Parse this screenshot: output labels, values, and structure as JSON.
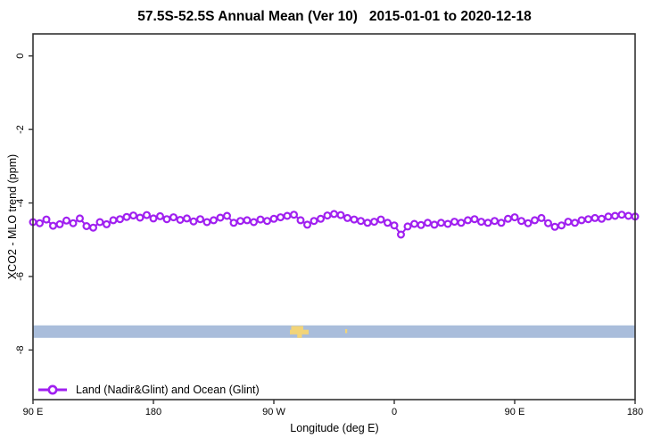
{
  "title": "57.5S-52.5S Annual Mean (Ver 10)   2015-01-01 to 2020-12-18",
  "legend": {
    "label": "Land (Nadir&Glint) and Ocean (Glint)"
  },
  "colors": {
    "series": "#A020F0",
    "marker_fill": "#ffffff",
    "ocean_band": "#A9BDDB",
    "land": "#F2D478",
    "axis": "#333333",
    "text": "#000000"
  },
  "chart_data": {
    "type": "line",
    "title": "57.5S-52.5S Annual Mean (Ver 10)   2015-01-01 to 2020-12-18",
    "xlabel": "Longitude (deg E)",
    "ylabel": "XCO2 - MLO trend (ppm)",
    "xlim": [
      90,
      540
    ],
    "ylim": [
      -9.35,
      0.6
    ],
    "grid": false,
    "legend_position": "bottom-left-inside",
    "x_ticks": [
      {
        "value": 90,
        "label": "90 E"
      },
      {
        "value": 180,
        "label": "180"
      },
      {
        "value": 270,
        "label": "90 W"
      },
      {
        "value": 360,
        "label": "0"
      },
      {
        "value": 450,
        "label": "90 E"
      },
      {
        "value": 540,
        "label": "180"
      }
    ],
    "y_ticks": [
      {
        "value": 0,
        "label": "0"
      },
      {
        "value": -2,
        "label": "-2"
      },
      {
        "value": -4,
        "label": "-4"
      },
      {
        "value": -6,
        "label": "-6"
      },
      {
        "value": -8,
        "label": "-8"
      }
    ],
    "band": {
      "name": "latitude-strip-map 57.5S-52.5S (ocean)",
      "y_top": -7.33,
      "y_bottom": -7.67,
      "land_patches": [
        {
          "lon": [
            283,
            292
          ],
          "frac": [
            0.05,
            0.45
          ]
        },
        {
          "lon": [
            282,
            296
          ],
          "frac": [
            0.35,
            0.72
          ]
        },
        {
          "lon": [
            287.5,
            291
          ],
          "frac": [
            0.6,
            1.0
          ]
        },
        {
          "lon": [
            323.3,
            324.8
          ],
          "frac": [
            0.3,
            0.62
          ]
        }
      ]
    },
    "series": [
      {
        "name": "Land (Nadir&Glint) and Ocean (Glint)",
        "marker": "open-circle",
        "x": [
          90,
          95,
          100,
          105,
          110,
          115,
          120,
          125,
          130,
          135,
          140,
          145,
          150,
          155,
          160,
          165,
          170,
          175,
          180,
          185,
          190,
          195,
          200,
          205,
          210,
          215,
          220,
          225,
          230,
          235,
          240,
          245,
          250,
          255,
          260,
          265,
          270,
          275,
          280,
          285,
          290,
          295,
          300,
          305,
          310,
          315,
          320,
          325,
          330,
          335,
          340,
          345,
          350,
          355,
          360,
          365,
          370,
          375,
          380,
          385,
          390,
          395,
          400,
          405,
          410,
          415,
          420,
          425,
          430,
          435,
          440,
          445,
          450,
          455,
          460,
          465,
          470,
          475,
          480,
          485,
          490,
          495,
          500,
          505,
          510,
          515,
          520,
          525,
          530,
          535,
          540
        ],
        "y": [
          -4.52,
          -4.55,
          -4.45,
          -4.62,
          -4.58,
          -4.48,
          -4.55,
          -4.42,
          -4.63,
          -4.67,
          -4.52,
          -4.58,
          -4.47,
          -4.44,
          -4.38,
          -4.34,
          -4.4,
          -4.33,
          -4.42,
          -4.36,
          -4.44,
          -4.39,
          -4.46,
          -4.42,
          -4.5,
          -4.44,
          -4.52,
          -4.47,
          -4.4,
          -4.35,
          -4.54,
          -4.49,
          -4.47,
          -4.52,
          -4.45,
          -4.49,
          -4.43,
          -4.39,
          -4.35,
          -4.32,
          -4.47,
          -4.59,
          -4.49,
          -4.43,
          -4.34,
          -4.3,
          -4.33,
          -4.41,
          -4.45,
          -4.49,
          -4.54,
          -4.51,
          -4.45,
          -4.54,
          -4.61,
          -4.86,
          -4.64,
          -4.57,
          -4.6,
          -4.54,
          -4.59,
          -4.54,
          -4.57,
          -4.51,
          -4.54,
          -4.47,
          -4.44,
          -4.51,
          -4.54,
          -4.49,
          -4.54,
          -4.43,
          -4.39,
          -4.49,
          -4.55,
          -4.47,
          -4.41,
          -4.55,
          -4.65,
          -4.61,
          -4.51,
          -4.54,
          -4.47,
          -4.44,
          -4.41,
          -4.43,
          -4.37,
          -4.35,
          -4.32,
          -4.35,
          -4.37
        ]
      }
    ]
  }
}
